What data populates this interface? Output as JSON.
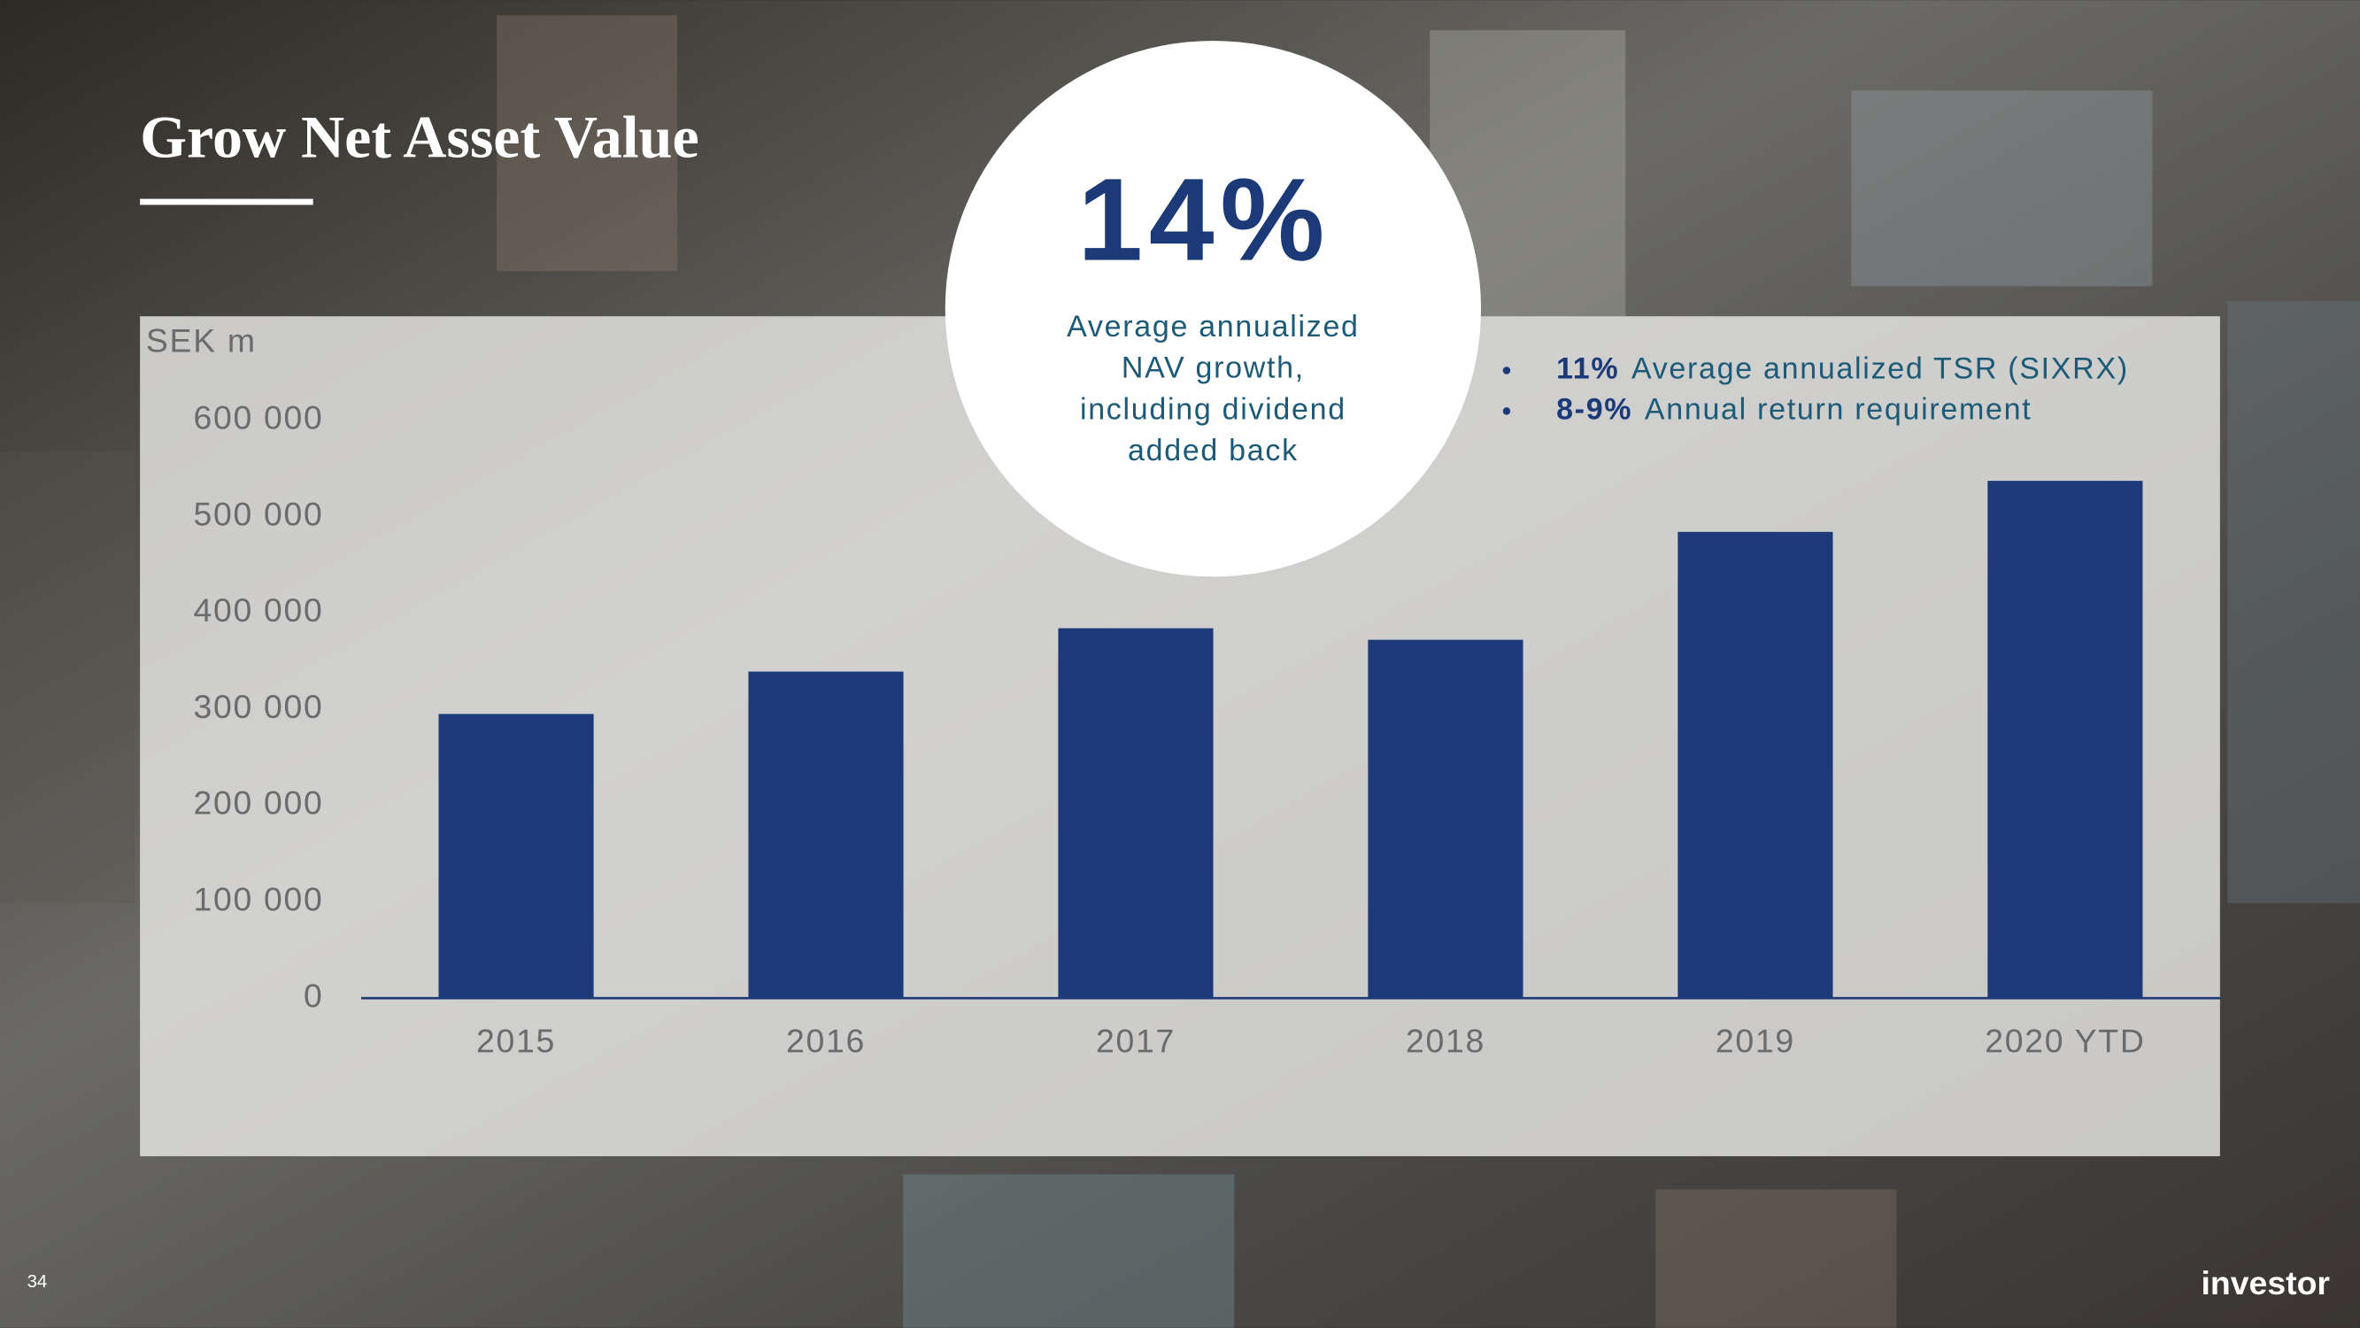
{
  "chart_data": {
    "type": "bar",
    "title": "Grow Net Asset Value",
    "y_label": "SEK m",
    "categories": [
      "2015",
      "2016",
      "2017",
      "2018",
      "2019",
      "2020 YTD"
    ],
    "values": [
      295000,
      339000,
      384000,
      372000,
      484000,
      537000
    ],
    "color": "#1c3a78",
    "ylim": [
      0,
      600000
    ],
    "yticks": [
      0,
      {
        "value": 100000,
        "label": "100 000"
      },
      {
        "value": 200000,
        "label": "200 000"
      },
      {
        "value": 300000,
        "label": "300 000"
      },
      {
        "value": 400000,
        "label": "400 000"
      },
      {
        "value": 500000,
        "label": "500 000"
      },
      {
        "value": 600000,
        "label": "600 000"
      }
    ],
    "grid": false,
    "highlight": {
      "value": "14%",
      "caption": [
        "Average annualized",
        "NAV growth,",
        "including dividend",
        "added back"
      ]
    },
    "bullets": [
      {
        "highlight": "11%",
        "text": "Average annualized TSR (SIXRX)"
      },
      {
        "highlight": "8-9%",
        "text": "Annual return requirement"
      }
    ]
  },
  "footer": {
    "page": "34",
    "logo": "investor"
  }
}
